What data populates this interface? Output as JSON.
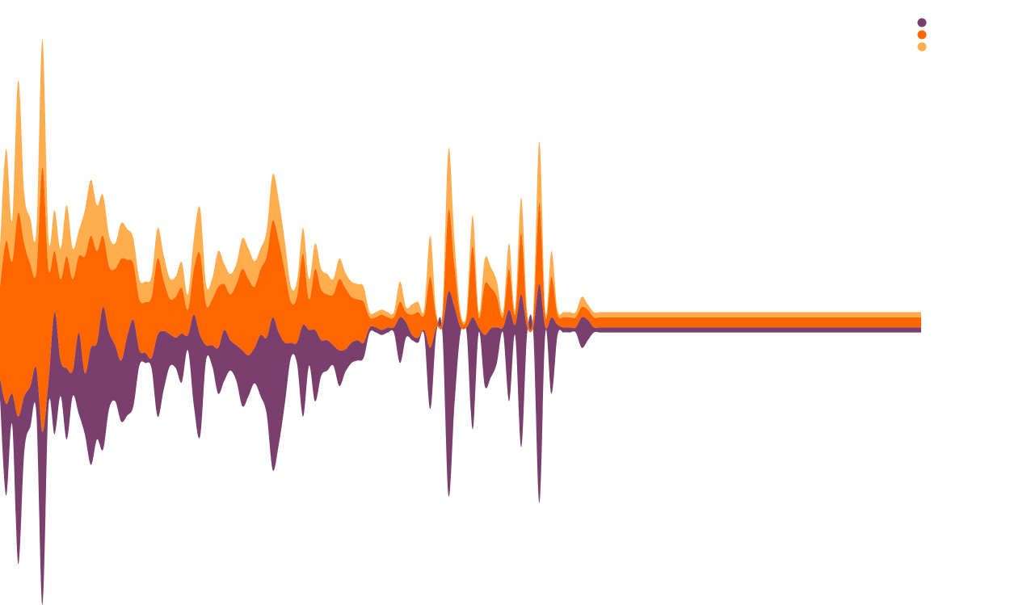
{
  "chart_data": {
    "type": "area",
    "layout": "streamgraph",
    "baseline": "symmetric",
    "x": [
      0,
      1,
      2,
      3,
      4,
      5,
      6,
      7,
      8,
      9,
      10,
      11,
      12,
      13,
      14,
      15,
      16,
      17,
      18,
      19,
      20,
      21,
      22,
      23,
      24,
      25,
      26,
      27,
      28,
      29,
      30,
      31,
      32,
      33,
      34,
      35,
      36,
      37,
      38,
      39,
      40,
      41,
      42,
      43,
      44,
      45,
      46,
      47,
      48,
      49,
      50,
      51,
      52,
      53,
      54,
      55,
      56,
      57,
      58,
      59,
      60,
      61,
      62,
      63,
      64,
      65,
      66,
      67,
      68,
      69,
      70,
      71,
      72,
      73,
      74,
      75,
      76,
      77,
      78,
      79,
      80,
      81,
      82,
      83,
      84,
      85,
      86,
      87,
      88,
      89,
      90,
      91,
      92,
      93,
      94,
      95,
      96,
      97,
      98,
      99,
      100,
      101,
      102,
      103,
      104,
      105,
      106,
      107,
      108,
      109,
      110,
      111,
      112,
      113,
      114,
      115,
      116,
      117,
      118,
      119,
      120,
      121,
      122,
      123,
      124,
      125,
      126,
      127,
      128,
      129,
      130,
      131,
      132,
      133,
      134,
      135,
      136,
      137,
      138,
      139,
      140,
      141,
      142,
      143,
      144,
      145,
      146,
      147,
      148,
      149,
      150,
      151,
      152
    ],
    "series": [
      {
        "color": "#7b3f6e",
        "values": [
          20,
          90,
          30,
          145,
          55,
          40,
          45,
          170,
          25,
          120,
          35,
          70,
          25,
          80,
          60,
          115,
          95,
          140,
          75,
          55,
          60,
          78,
          85,
          15,
          10,
          10,
          80,
          58,
          32,
          30,
          48,
          15,
          90,
          100,
          15,
          20,
          45,
          50,
          30,
          35,
          55,
          40,
          35,
          60,
          75,
          150,
          110,
          60,
          15,
          20,
          90,
          35,
          70,
          35,
          30,
          20,
          35,
          22,
          20,
          20,
          15,
          5,
          5,
          5,
          5,
          5,
          45,
          15,
          5,
          5,
          5,
          60,
          5,
          5,
          200,
          95,
          5,
          5,
          110,
          5,
          50,
          48,
          35,
          5,
          90,
          10,
          150,
          5,
          5,
          215,
          5,
          75,
          10,
          5,
          5,
          5,
          30,
          20,
          5,
          5,
          5,
          5,
          5,
          5,
          5,
          5,
          5,
          5,
          5,
          5,
          5,
          5,
          5,
          5,
          5,
          5,
          5,
          5,
          5,
          5,
          5,
          5,
          5,
          5,
          5,
          5,
          5,
          5,
          5,
          5,
          5,
          5,
          5,
          5,
          5,
          5,
          5,
          5,
          5,
          5,
          5,
          5,
          5,
          5,
          5,
          5,
          5,
          5,
          5,
          5,
          5,
          5,
          5
        ]
      },
      {
        "color": "#ff6600",
        "values": [
          90,
          160,
          130,
          200,
          150,
          120,
          95,
          260,
          110,
          60,
          80,
          110,
          90,
          75,
          115,
          110,
          90,
          70,
          65,
          75,
          100,
          75,
          55,
          50,
          50,
          60,
          75,
          50,
          35,
          40,
          45,
          25,
          45,
          80,
          40,
          45,
          60,
          45,
          45,
          60,
          80,
          75,
          60,
          65,
          80,
          95,
          90,
          70,
          40,
          45,
          70,
          30,
          60,
          50,
          45,
          50,
          70,
          60,
          45,
          40,
          40,
          10,
          10,
          15,
          10,
          10,
          15,
          10,
          20,
          25,
          15,
          70,
          10,
          10,
          80,
          40,
          10,
          10,
          70,
          10,
          50,
          40,
          30,
          10,
          40,
          10,
          60,
          10,
          10,
          80,
          10,
          40,
          10,
          10,
          10,
          10,
          10,
          10,
          10,
          10,
          10,
          10,
          10,
          10,
          10,
          10,
          10,
          10,
          10,
          10,
          10,
          10,
          10,
          10,
          10,
          10,
          10,
          10,
          10,
          10,
          10,
          10,
          10,
          10,
          10,
          10,
          10,
          10,
          10,
          10,
          10,
          10,
          10,
          10,
          10,
          10,
          10,
          10,
          10,
          10,
          10,
          10,
          10,
          10,
          10,
          10,
          10,
          10,
          10,
          10,
          10,
          10,
          10
        ]
      },
      {
        "color": "#ffad4f",
        "values": [
          40,
          90,
          40,
          130,
          50,
          45,
          40,
          125,
          30,
          40,
          30,
          50,
          30,
          25,
          45,
          55,
          45,
          40,
          30,
          25,
          35,
          30,
          25,
          20,
          20,
          20,
          30,
          25,
          20,
          20,
          25,
          15,
          30,
          45,
          20,
          20,
          35,
          20,
          20,
          20,
          30,
          30,
          25,
          20,
          25,
          45,
          40,
          30,
          15,
          15,
          25,
          20,
          25,
          20,
          20,
          15,
          20,
          15,
          15,
          15,
          15,
          5,
          5,
          5,
          5,
          5,
          20,
          5,
          10,
          10,
          5,
          40,
          5,
          5,
          60,
          25,
          5,
          5,
          30,
          5,
          25,
          20,
          15,
          5,
          25,
          5,
          35,
          5,
          5,
          60,
          5,
          25,
          5,
          5,
          5,
          5,
          10,
          5,
          5,
          5,
          5,
          5,
          5,
          5,
          5,
          5,
          5,
          5,
          5,
          5,
          5,
          5,
          5,
          5,
          5,
          5,
          5,
          5,
          5,
          5,
          5,
          5,
          5,
          5,
          5,
          5,
          5,
          5,
          5,
          5,
          5,
          5,
          5,
          5,
          5,
          5,
          5,
          5,
          5,
          5,
          5,
          5,
          5,
          5,
          5,
          5,
          5,
          5,
          5,
          5,
          5,
          5,
          5
        ]
      }
    ],
    "legend": {
      "position": "top-right",
      "entries": [
        {
          "color": "#7b3f6e"
        },
        {
          "color": "#ff6600"
        },
        {
          "color": "#ffad4f"
        }
      ]
    },
    "axes": {
      "x_visible": false,
      "y_visible": false
    },
    "grid": false
  }
}
